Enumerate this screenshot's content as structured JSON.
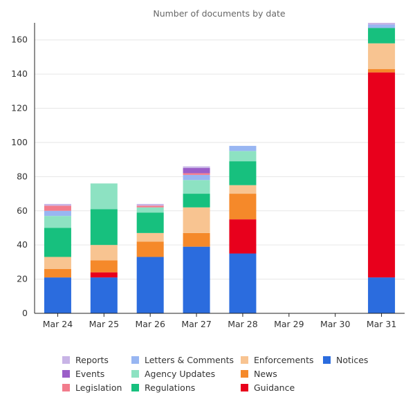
{
  "chart_data": {
    "type": "bar",
    "stacked": true,
    "title": "Number of documents by date",
    "xlabel": "",
    "ylabel": "",
    "ylim": [
      0,
      170
    ],
    "yticks": [
      0,
      20,
      40,
      60,
      80,
      100,
      120,
      140,
      160
    ],
    "grid": true,
    "legend_position": "bottom",
    "categories": [
      "Mar 24",
      "Mar 25",
      "Mar 26",
      "Mar 27",
      "Mar 28",
      "Mar 29",
      "Mar 30",
      "Mar 31"
    ],
    "series": [
      {
        "name": "Notices",
        "color": "#2b6cde",
        "values": [
          21,
          21,
          33,
          39,
          35,
          0,
          0,
          21
        ]
      },
      {
        "name": "Guidance",
        "color": "#e8001c",
        "values": [
          0,
          3,
          0,
          0,
          20,
          0,
          0,
          120
        ]
      },
      {
        "name": "News",
        "color": "#f5892a",
        "values": [
          5,
          7,
          9,
          8,
          15,
          0,
          0,
          2
        ]
      },
      {
        "name": "Enforcements",
        "color": "#f8c491",
        "values": [
          7,
          9,
          5,
          15,
          5,
          0,
          0,
          15
        ]
      },
      {
        "name": "Regulations",
        "color": "#17c07e",
        "values": [
          17,
          21,
          12,
          8,
          14,
          0,
          0,
          9
        ]
      },
      {
        "name": "Agency Updates",
        "color": "#8de2c2",
        "values": [
          7,
          15,
          3,
          8,
          6,
          0,
          0,
          0
        ]
      },
      {
        "name": "Letters & Comments",
        "color": "#98b6f2",
        "values": [
          3,
          0,
          0,
          3,
          3,
          0,
          0,
          2
        ]
      },
      {
        "name": "Legislation",
        "color": "#f27c8c",
        "values": [
          3,
          0,
          1,
          1,
          0,
          0,
          0,
          0
        ]
      },
      {
        "name": "Events",
        "color": "#9b5ec8",
        "values": [
          0,
          0,
          0,
          3,
          0,
          0,
          0,
          0
        ]
      },
      {
        "name": "Reports",
        "color": "#c8b4e6",
        "values": [
          1,
          0,
          1,
          1,
          0,
          0,
          0,
          1
        ]
      }
    ]
  }
}
